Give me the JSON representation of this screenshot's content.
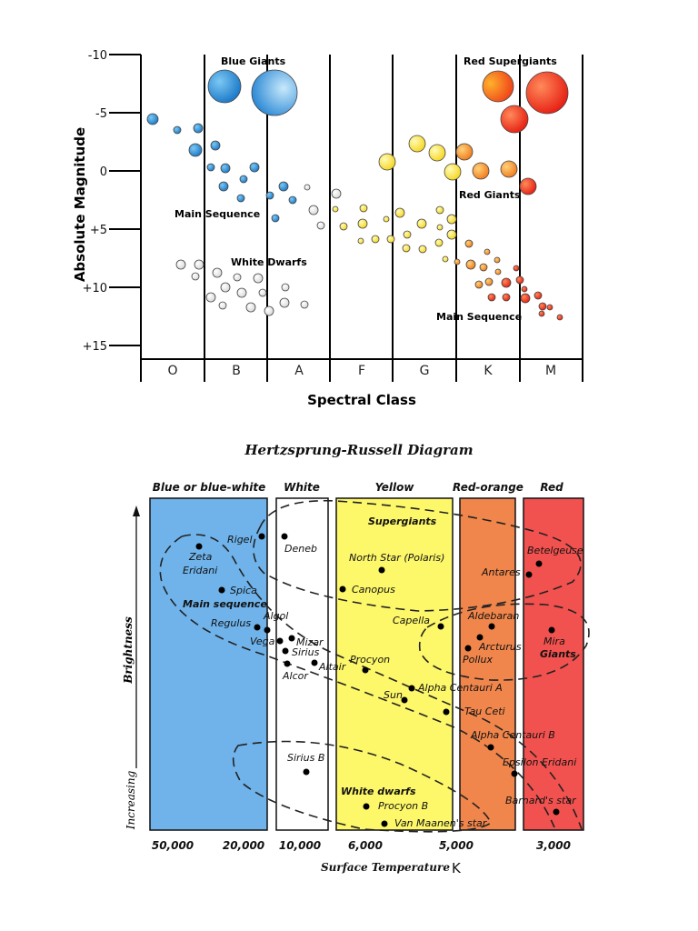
{
  "top": {
    "ylabel": "Absolute Magnitude",
    "xlabel": "Spectral Class",
    "yticks": [
      "-10",
      "-5",
      "0",
      "+5",
      "+10",
      "+15"
    ],
    "classes": [
      "O",
      "B",
      "A",
      "F",
      "G",
      "K",
      "M"
    ],
    "labels": {
      "blue_giants": "Blue Giants",
      "red_supergiants": "Red Supergiants",
      "red_giants": "Red Giants",
      "main_sequence_left": "Main Sequence",
      "white_dwarfs": "White Dwarfs",
      "main_sequence_right": "Main Sequence"
    }
  },
  "hr": {
    "title": "Hertzsprung-Russell Diagram",
    "bands": [
      "Blue or blue-white",
      "White",
      "Yellow",
      "Red-orange",
      "Red"
    ],
    "temps": [
      "50,000",
      "20,000",
      "10,000",
      "6,000",
      "5,000",
      "3,000"
    ],
    "xlabel": "Surface Temperature",
    "xunit": "K",
    "ylabel_top": "Brightness",
    "ylabel_bottom": "Increasing",
    "groups": {
      "supergiants": "Supergiants",
      "main_sequence": "Main sequence",
      "giants": "Giants",
      "white_dwarfs": "White dwarfs"
    },
    "stars": {
      "rigel": "Rigel",
      "deneb": "Deneb",
      "zeta": "Zeta",
      "eridani": "Eridani",
      "spica": "Spica",
      "regulus": "Regulus",
      "algol": "Algol",
      "vega": "Vega",
      "mizar": "Mizar",
      "sirius": "Sirius",
      "alcor": "Alcor",
      "altair": "Altair",
      "north_star": "North Star (Polaris)",
      "canopus": "Canopus",
      "capella": "Capella",
      "procyon": "Procyon",
      "sun": "Sun",
      "alpha_centauri_a": "Alpha Centauri A",
      "betelgeuse": "Betelgeuse",
      "antares": "Antares",
      "aldebaran": "Aldebaran",
      "arcturus": "Arcturus",
      "pollux": "Pollux",
      "mira": "Mira",
      "tau_ceti": "Tau Ceti",
      "alpha_centauri_b": "Alpha Centauri B",
      "epsilon_eridani": "Epsilon Eridani",
      "barnards_star": "Barnard's star",
      "sirius_b": "Sirius B",
      "procyon_b": "Procyon B",
      "van_maanens_star": "Van Maanen's star"
    }
  },
  "colors": {
    "blue_band": "#6fb3ea",
    "white_band": "#ffffff",
    "yellow_band": "#fdf76a",
    "orange_band": "#f0864c",
    "red_band": "#f2524f"
  }
}
